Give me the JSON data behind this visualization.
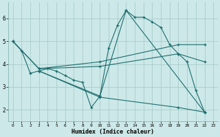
{
  "bg_color": "#cce8e8",
  "grid_color": "#aacccc",
  "line_color": "#1a6b6b",
  "xlabel": "Humidex (Indice chaleur)",
  "xlim": [
    -0.5,
    23.5
  ],
  "ylim": [
    1.5,
    6.7
  ],
  "xticks": [
    0,
    1,
    2,
    3,
    4,
    5,
    6,
    7,
    8,
    9,
    10,
    11,
    12,
    13,
    14,
    15,
    16,
    17,
    18,
    19,
    20,
    21,
    22,
    23
  ],
  "yticks": [
    2,
    3,
    4,
    5,
    6
  ],
  "series1": [
    [
      0,
      5.0
    ],
    [
      1,
      4.6
    ],
    [
      2,
      3.6
    ],
    [
      3,
      3.7
    ],
    [
      4,
      3.8
    ],
    [
      5,
      3.7
    ],
    [
      6,
      3.5
    ],
    [
      7,
      3.3
    ],
    [
      8,
      3.2
    ],
    [
      9,
      2.1
    ],
    [
      10,
      2.6
    ],
    [
      11,
      4.7
    ],
    [
      12,
      5.7
    ],
    [
      13,
      6.35
    ],
    [
      14,
      6.05
    ],
    [
      15,
      6.05
    ],
    [
      16,
      5.85
    ],
    [
      17,
      5.6
    ],
    [
      18,
      4.85
    ],
    [
      19,
      4.45
    ],
    [
      20,
      4.1
    ],
    [
      21,
      2.85
    ],
    [
      22,
      1.9
    ]
  ],
  "series2": [
    [
      0,
      5.0
    ],
    [
      3,
      3.8
    ],
    [
      10,
      4.1
    ],
    [
      19,
      4.85
    ],
    [
      22,
      4.85
    ]
  ],
  "series3": [
    [
      0,
      5.0
    ],
    [
      3,
      3.8
    ],
    [
      10,
      3.9
    ],
    [
      19,
      4.45
    ],
    [
      22,
      4.1
    ]
  ],
  "series4": [
    [
      3,
      3.7
    ],
    [
      10,
      2.6
    ],
    [
      13,
      6.35
    ],
    [
      22,
      1.9
    ]
  ],
  "series5": [
    [
      3,
      3.7
    ],
    [
      10,
      2.55
    ],
    [
      19,
      2.1
    ],
    [
      22,
      1.9
    ]
  ]
}
